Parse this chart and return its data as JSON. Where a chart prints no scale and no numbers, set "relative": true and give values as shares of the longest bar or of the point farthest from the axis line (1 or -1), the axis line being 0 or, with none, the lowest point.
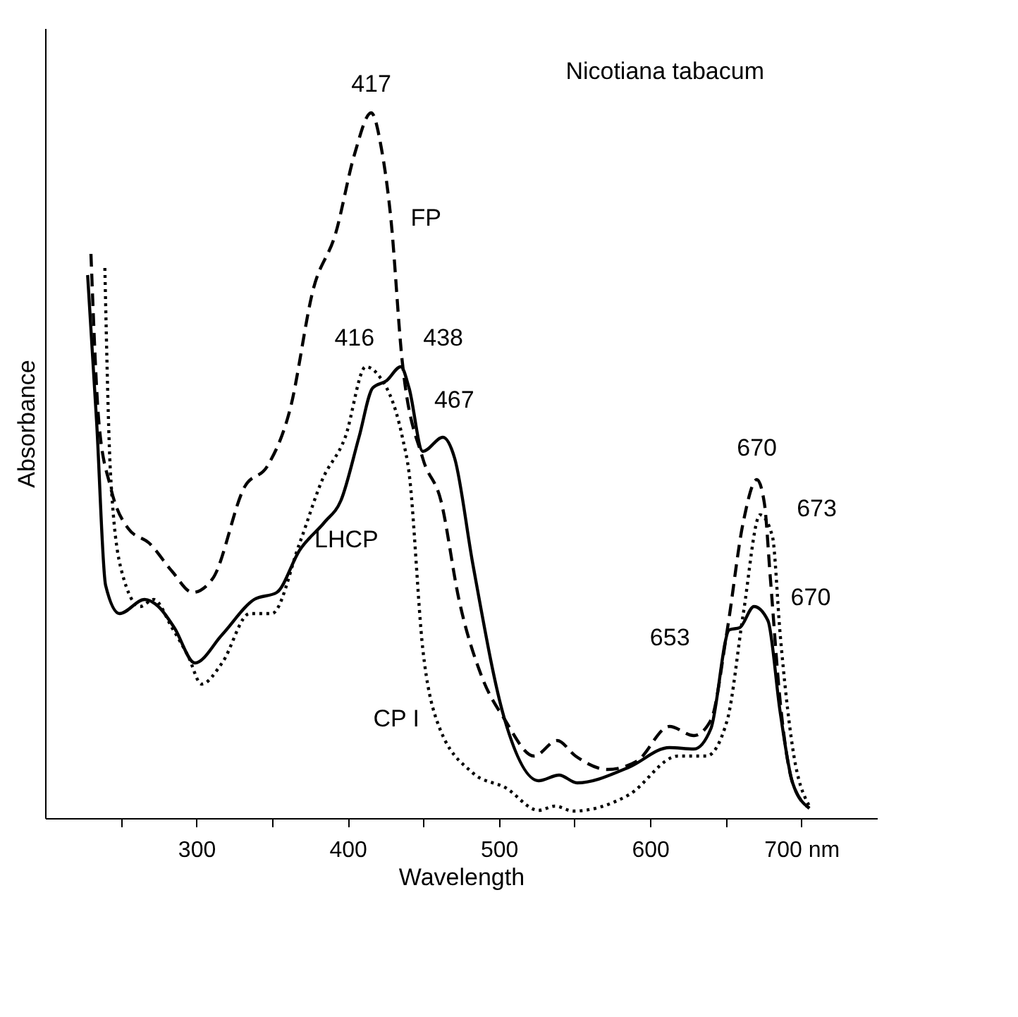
{
  "chart_data": {
    "type": "line",
    "title": "Nicotiana tabacum",
    "xlabel": "Wavelength",
    "ylabel": "Absorbance",
    "relative": true,
    "xlim": [
      200,
      750
    ],
    "xticks": [
      {
        "value": 250,
        "label": null
      },
      300,
      {
        "value": 350,
        "label": null
      },
      400,
      {
        "value": 450,
        "label": null
      },
      500,
      {
        "value": 550,
        "label": null
      },
      600,
      {
        "value": 650,
        "label": null
      },
      {
        "value": 700,
        "label": "700 nm"
      }
    ],
    "series": [
      {
        "name": "FP",
        "color": "#000000",
        "line_style": "dashed",
        "x": [
          230.3,
          235.6,
          243.2,
          255.2,
          268.8,
          283.9,
          297.5,
          310.9,
          332,
          347.2,
          362,
          377.3,
          392.2,
          404.4,
          415.6,
          422.3,
          428.6,
          436,
          449.7,
          461.7,
          473.6,
          488.8,
          503.8,
          523.3,
          538.5,
          550.7,
          572,
          591.4,
          612.8,
          629,
          640.2,
          651,
          661.6,
          670.6,
          675.5,
          679.5,
          686,
          694.2,
          705.3
        ],
        "values": [
          0.8,
          0.56,
          0.47,
          0.41,
          0.39,
          0.35,
          0.32,
          0.34,
          0.47,
          0.5,
          0.58,
          0.75,
          0.83,
          0.94,
          1.0,
          0.95,
          0.85,
          0.65,
          0.51,
          0.45,
          0.31,
          0.2,
          0.14,
          0.088,
          0.11,
          0.088,
          0.069,
          0.081,
          0.13,
          0.117,
          0.139,
          0.267,
          0.42,
          0.48,
          0.447,
          0.34,
          0.165,
          0.05,
          0.014
        ]
      },
      {
        "name": "LHCP",
        "color": "#000000",
        "line_style": "solid",
        "x": [
          228.1,
          234.1,
          240,
          249.2,
          265.8,
          274.9,
          285.4,
          299,
          317,
          338.2,
          353.2,
          368.3,
          384.9,
          395.5,
          407.5,
          416.6,
          425.6,
          435.2,
          440.6,
          449.7,
          463,
          470.8,
          482.8,
          503.8,
          526.3,
          539.8,
          551.7,
          585.9,
          612.8,
          629,
          640.2,
          652.4,
          659.2,
          668.7,
          677.9,
          686,
          694.2,
          705.3
        ],
        "values": [
          0.77,
          0.56,
          0.33,
          0.29,
          0.31,
          0.3,
          0.27,
          0.22,
          0.26,
          0.31,
          0.32,
          0.38,
          0.42,
          0.45,
          0.54,
          0.61,
          0.62,
          0.64,
          0.61,
          0.52,
          0.54,
          0.51,
          0.36,
          0.14,
          0.053,
          0.061,
          0.05,
          0.072,
          0.1,
          0.098,
          0.127,
          0.267,
          0.27,
          0.3,
          0.28,
          0.15,
          0.05,
          0.014
        ]
      },
      {
        "name": "CP I",
        "color": "#000000",
        "line_style": "dotted",
        "x": [
          239.5,
          243.2,
          250.6,
          262.8,
          271.8,
          283.9,
          294.5,
          303.5,
          317,
          335.2,
          349.9,
          368.3,
          383.3,
          398.4,
          412,
          419.6,
          436.2,
          440.6,
          449.7,
          458.7,
          482.8,
          504.5,
          526.3,
          537,
          549.3,
          585.9,
          618.5,
          637.2,
          651,
          661.6,
          672.7,
          680.8,
          686,
          694.2,
          705.3
        ],
        "values": [
          0.78,
          0.49,
          0.35,
          0.3,
          0.31,
          0.27,
          0.23,
          0.19,
          0.22,
          0.29,
          0.29,
          0.39,
          0.48,
          0.54,
          0.64,
          0.63,
          0.54,
          0.49,
          0.24,
          0.14,
          0.064,
          0.043,
          0.011,
          0.017,
          0.01,
          0.033,
          0.088,
          0.088,
          0.139,
          0.29,
          0.43,
          0.4,
          0.26,
          0.1,
          0.017
        ]
      }
    ],
    "annotations": [
      {
        "text": "417",
        "x": 415.6,
        "y": 1.0
      },
      {
        "text": "416",
        "x": 412,
        "y": 0.64
      },
      {
        "text": "438",
        "x": 435.2,
        "y": 0.64
      },
      {
        "text": "467",
        "x": 463,
        "y": 0.54
      },
      {
        "text": "670",
        "x": 670.6,
        "y": 0.48
      },
      {
        "text": "673",
        "x": 672.7,
        "y": 0.43
      },
      {
        "text": "653",
        "x": 652.4,
        "y": 0.267
      },
      {
        "text": "670",
        "x": 668.7,
        "y": 0.3
      }
    ]
  }
}
